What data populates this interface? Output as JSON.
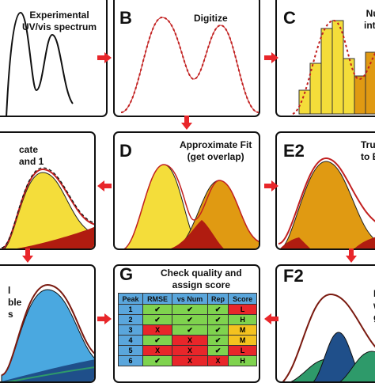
{
  "panels": {
    "a": {
      "title_lines": [
        "Experimental",
        "UV/vis spectrum"
      ]
    },
    "b": {
      "letter": "B",
      "title": "Digitize"
    },
    "c": {
      "letter": "C",
      "title_lines": [
        "Nu",
        "inte"
      ]
    },
    "d_left": {
      "title_lines": [
        "cate",
        "and 1"
      ]
    },
    "d": {
      "letter": "D",
      "title_lines": [
        "Approximate Fit",
        "(get overlap)"
      ]
    },
    "e2": {
      "letter": "E2",
      "title_lines": [
        "Tru",
        "to E"
      ]
    },
    "f_left": {
      "title_lines": [
        "l",
        "ble",
        "s"
      ]
    },
    "g": {
      "letter": "G",
      "title_lines": [
        "Check quality and",
        "assign score"
      ]
    },
    "f2": {
      "letter": "F2",
      "title_lines": [
        "I",
        "wi",
        "g"
      ]
    }
  },
  "score_table": {
    "headers": [
      "Peak",
      "RMSE",
      "vs Num",
      "Rep",
      "Score"
    ],
    "rows": [
      {
        "peak": "1",
        "rmse": "✔",
        "vsnum": "✔",
        "rep": "✔",
        "score": "L",
        "rmse_ok": true,
        "vsnum_ok": true,
        "rep_ok": true,
        "score_level": "L"
      },
      {
        "peak": "2",
        "rmse": "✔",
        "vsnum": "✔",
        "rep": "✔",
        "score": "H",
        "rmse_ok": true,
        "vsnum_ok": true,
        "rep_ok": true,
        "score_level": "H"
      },
      {
        "peak": "3",
        "rmse": "X",
        "vsnum": "✔",
        "rep": "✔",
        "score": "M",
        "rmse_ok": false,
        "vsnum_ok": true,
        "rep_ok": true,
        "score_level": "M"
      },
      {
        "peak": "4",
        "rmse": "✔",
        "vsnum": "X",
        "rep": "✔",
        "score": "M",
        "rmse_ok": true,
        "vsnum_ok": false,
        "rep_ok": true,
        "score_level": "M"
      },
      {
        "peak": "5",
        "rmse": "X",
        "vsnum": "X",
        "rep": "✔",
        "score": "L",
        "rmse_ok": false,
        "vsnum_ok": false,
        "rep_ok": true,
        "score_level": "L"
      },
      {
        "peak": "6",
        "rmse": "✔",
        "vsnum": "X",
        "rep": "X",
        "score": "H",
        "rmse_ok": true,
        "vsnum_ok": false,
        "rep_ok": false,
        "score_level": "H"
      }
    ]
  },
  "colors": {
    "arrow": "#e8262a",
    "yellow": "#f4dd3a",
    "orange": "#e09a12",
    "darkred": "#b01c10",
    "blue": "#4aa8e0",
    "green": "#2e9a6a",
    "navy": "#1f4f8a",
    "fitline": "#c22020"
  },
  "icons": {
    "arrows": "arrow-icon"
  }
}
